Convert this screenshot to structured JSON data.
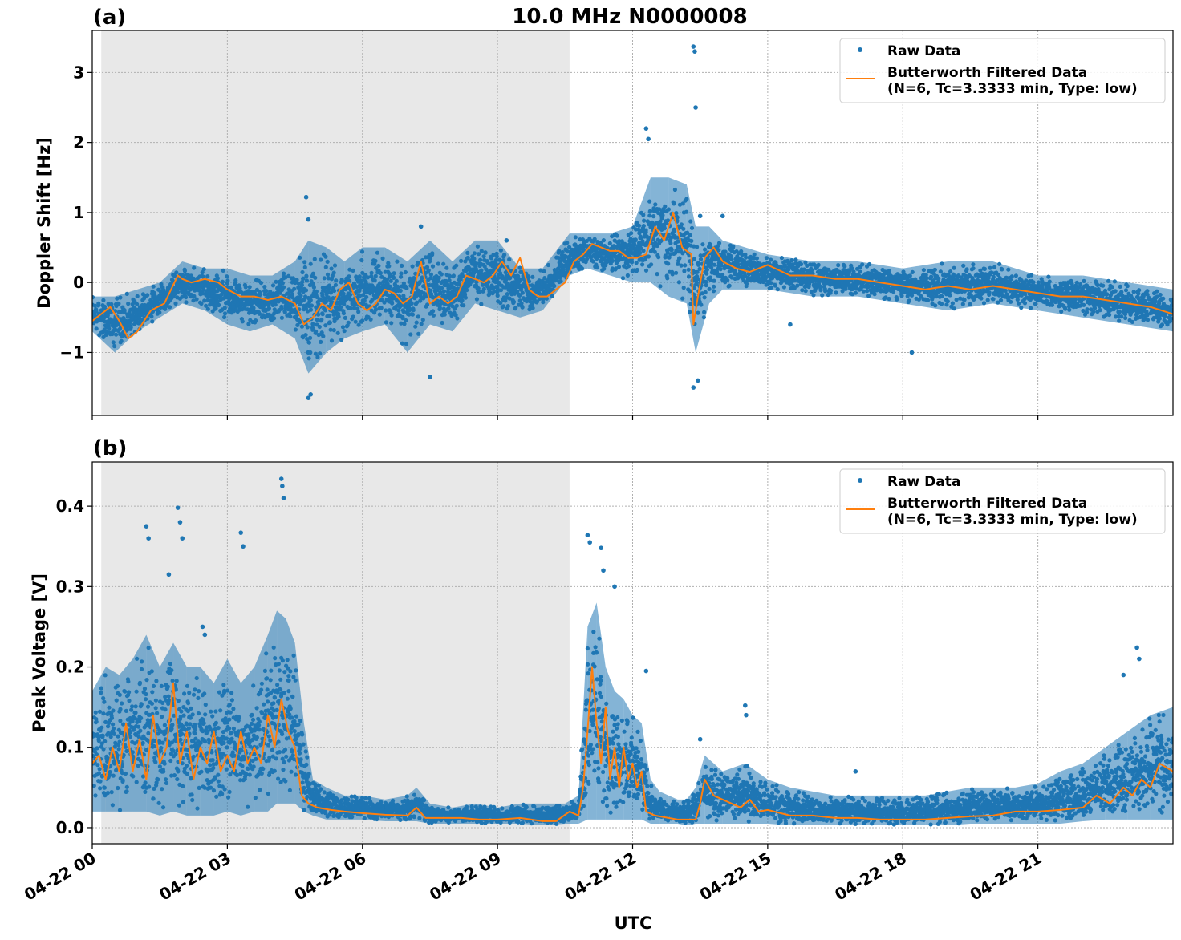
{
  "figure_title": "10.0 MHz N0000008",
  "xlabel": "UTC",
  "chart_data": [
    {
      "type": "line",
      "panel_label": "(a)",
      "ylabel": "Doppler Shift [Hz]",
      "x_unit": "hours since 04-22 00:00 UTC",
      "xlim": [
        0,
        24
      ],
      "ylim": [
        -1.9,
        3.6
      ],
      "yticks": [
        -1,
        0,
        1,
        2,
        3
      ],
      "ytick_labels": [
        "−1",
        "0",
        "1",
        "2",
        "3"
      ],
      "xticks": [
        0,
        3,
        6,
        9,
        12,
        15,
        18,
        21
      ],
      "shaded_region_hours": [
        0.2,
        10.6
      ],
      "grid": true,
      "legend_position": "top-right",
      "legend": [
        {
          "label": "Raw Data",
          "style": "dots",
          "color": "#1f77b4"
        },
        {
          "label": "Butterworth Filtered Data\n(N=6, Tc=3.3333 min, Type: low)",
          "style": "line",
          "color": "#ff7f0e"
        }
      ],
      "series": [
        {
          "name": "Raw Data",
          "kind": "scatter-band",
          "x": [
            0,
            0.5,
            1.0,
            1.5,
            2.0,
            2.5,
            3.0,
            3.5,
            4.0,
            4.5,
            4.8,
            5.2,
            5.6,
            6.0,
            6.5,
            7.0,
            7.5,
            8.0,
            8.5,
            9.0,
            9.5,
            10.0,
            10.6,
            11.0,
            11.5,
            12.0,
            12.4,
            12.8,
            13.2,
            13.4,
            13.7,
            14.0,
            14.5,
            15.0,
            16.0,
            17.0,
            18.0,
            19.0,
            20.0,
            21.0,
            22.0,
            23.0,
            24.0
          ],
          "upper": [
            -0.2,
            -0.2,
            -0.1,
            0.0,
            0.3,
            0.2,
            0.2,
            0.1,
            0.1,
            0.3,
            0.6,
            0.5,
            0.3,
            0.5,
            0.5,
            0.3,
            0.6,
            0.3,
            0.6,
            0.6,
            0.2,
            0.2,
            0.7,
            0.7,
            0.7,
            0.8,
            1.5,
            1.5,
            1.4,
            0.8,
            0.8,
            0.6,
            0.5,
            0.4,
            0.3,
            0.3,
            0.2,
            0.3,
            0.3,
            0.1,
            0.1,
            0.0,
            -0.1
          ],
          "lower": [
            -0.7,
            -1.0,
            -0.7,
            -0.5,
            -0.3,
            -0.4,
            -0.6,
            -0.7,
            -0.6,
            -0.8,
            -1.3,
            -1.0,
            -0.8,
            -0.7,
            -0.6,
            -1.0,
            -0.6,
            -0.7,
            -0.3,
            -0.4,
            -0.5,
            -0.4,
            0.1,
            0.2,
            0.1,
            0.0,
            0.0,
            -0.2,
            -0.3,
            -1.0,
            -0.3,
            -0.1,
            -0.1,
            -0.1,
            -0.2,
            -0.2,
            -0.3,
            -0.4,
            -0.3,
            -0.4,
            -0.5,
            -0.6,
            -0.7
          ]
        },
        {
          "name": "Raw Data outliers",
          "kind": "points",
          "x": [
            4.75,
            4.8,
            4.85,
            4.8,
            7.3,
            7.5,
            12.3,
            12.35,
            13.35,
            13.38,
            13.4,
            13.35,
            13.45,
            13.5,
            14.0,
            18.2,
            15.5,
            9.2
          ],
          "y": [
            1.22,
            0.9,
            -1.6,
            -1.65,
            0.8,
            -1.35,
            2.2,
            2.05,
            3.37,
            3.3,
            2.5,
            -1.5,
            -1.4,
            0.95,
            0.95,
            -1.0,
            -0.6,
            0.6
          ]
        },
        {
          "name": "Butterworth Filtered Data",
          "kind": "line",
          "x": [
            0,
            0.2,
            0.4,
            0.6,
            0.8,
            1.0,
            1.3,
            1.6,
            1.9,
            2.0,
            2.2,
            2.5,
            2.8,
            3.0,
            3.3,
            3.6,
            3.9,
            4.2,
            4.5,
            4.7,
            4.9,
            5.1,
            5.3,
            5.5,
            5.7,
            5.9,
            6.1,
            6.3,
            6.5,
            6.7,
            6.9,
            7.1,
            7.3,
            7.5,
            7.7,
            7.9,
            8.1,
            8.3,
            8.5,
            8.7,
            8.9,
            9.1,
            9.3,
            9.5,
            9.7,
            9.9,
            10.1,
            10.3,
            10.5,
            10.7,
            10.9,
            11.1,
            11.3,
            11.5,
            11.7,
            11.9,
            12.1,
            12.3,
            12.5,
            12.7,
            12.9,
            13.1,
            13.3,
            13.35,
            13.45,
            13.6,
            13.8,
            14.0,
            14.3,
            14.6,
            15.0,
            15.5,
            16.0,
            16.5,
            17.0,
            17.5,
            18.0,
            18.5,
            19.0,
            19.5,
            20.0,
            20.5,
            21.0,
            21.5,
            22.0,
            22.5,
            23.0,
            23.5,
            24.0
          ],
          "y": [
            -0.55,
            -0.45,
            -0.35,
            -0.55,
            -0.8,
            -0.7,
            -0.4,
            -0.3,
            0.1,
            0.05,
            0.0,
            0.05,
            0.0,
            -0.1,
            -0.2,
            -0.2,
            -0.25,
            -0.2,
            -0.3,
            -0.6,
            -0.5,
            -0.3,
            -0.4,
            -0.1,
            0.0,
            -0.3,
            -0.4,
            -0.3,
            -0.1,
            -0.15,
            -0.3,
            -0.2,
            0.3,
            -0.3,
            -0.2,
            -0.3,
            -0.2,
            0.1,
            0.05,
            0.0,
            0.1,
            0.3,
            0.1,
            0.35,
            -0.1,
            -0.2,
            -0.2,
            -0.1,
            0.0,
            0.3,
            0.4,
            0.55,
            0.5,
            0.45,
            0.45,
            0.35,
            0.35,
            0.4,
            0.8,
            0.6,
            1.0,
            0.5,
            0.4,
            -0.6,
            -0.2,
            0.35,
            0.5,
            0.3,
            0.2,
            0.15,
            0.25,
            0.1,
            0.1,
            0.05,
            0.05,
            0.0,
            -0.05,
            -0.1,
            -0.05,
            -0.1,
            -0.05,
            -0.1,
            -0.15,
            -0.2,
            -0.2,
            -0.25,
            -0.3,
            -0.35,
            -0.45
          ]
        }
      ]
    },
    {
      "type": "line",
      "panel_label": "(b)",
      "ylabel": "Peak Voltage [V]",
      "x_unit": "hours since 04-22 00:00 UTC",
      "xlim": [
        0,
        24
      ],
      "ylim": [
        -0.02,
        0.455
      ],
      "yticks": [
        0.0,
        0.1,
        0.2,
        0.3,
        0.4
      ],
      "ytick_labels": [
        "0.0",
        "0.1",
        "0.2",
        "0.3",
        "0.4"
      ],
      "xticks": [
        0,
        3,
        6,
        9,
        12,
        15,
        18,
        21
      ],
      "xtick_labels": [
        "04-22 00",
        "04-22 03",
        "04-22 06",
        "04-22 09",
        "04-22 12",
        "04-22 15",
        "04-22 18",
        "04-22 21"
      ],
      "shaded_region_hours": [
        0.2,
        10.6
      ],
      "grid": true,
      "legend_position": "top-right",
      "legend": [
        {
          "label": "Raw Data",
          "style": "dots",
          "color": "#1f77b4"
        },
        {
          "label": "Butterworth Filtered Data\n(N=6, Tc=3.3333 min, Type: low)",
          "style": "line",
          "color": "#ff7f0e"
        }
      ],
      "series": [
        {
          "name": "Raw Data",
          "kind": "scatter-band",
          "x": [
            0,
            0.3,
            0.6,
            0.9,
            1.2,
            1.5,
            1.8,
            2.1,
            2.4,
            2.7,
            3.0,
            3.3,
            3.6,
            3.9,
            4.1,
            4.3,
            4.5,
            4.7,
            4.9,
            5.2,
            5.6,
            6.0,
            6.5,
            7.0,
            7.2,
            7.5,
            8.0,
            8.5,
            9.0,
            9.5,
            10.0,
            10.5,
            10.8,
            11.0,
            11.2,
            11.4,
            11.6,
            11.8,
            12.0,
            12.2,
            12.4,
            12.6,
            12.8,
            13.0,
            13.2,
            13.4,
            13.6,
            13.8,
            14.0,
            14.5,
            15.0,
            15.5,
            16.0,
            16.5,
            17.0,
            17.5,
            18.0,
            18.5,
            19.0,
            19.5,
            20.0,
            20.5,
            21.0,
            21.5,
            22.0,
            22.5,
            23.0,
            23.5,
            24.0
          ],
          "upper": [
            0.17,
            0.2,
            0.19,
            0.21,
            0.24,
            0.2,
            0.23,
            0.2,
            0.2,
            0.18,
            0.21,
            0.18,
            0.2,
            0.24,
            0.27,
            0.26,
            0.23,
            0.13,
            0.06,
            0.05,
            0.04,
            0.04,
            0.035,
            0.04,
            0.05,
            0.03,
            0.025,
            0.03,
            0.025,
            0.03,
            0.03,
            0.03,
            0.04,
            0.25,
            0.28,
            0.2,
            0.17,
            0.16,
            0.14,
            0.13,
            0.06,
            0.045,
            0.04,
            0.035,
            0.035,
            0.05,
            0.09,
            0.08,
            0.07,
            0.08,
            0.06,
            0.05,
            0.045,
            0.04,
            0.04,
            0.04,
            0.04,
            0.04,
            0.045,
            0.05,
            0.05,
            0.05,
            0.055,
            0.07,
            0.08,
            0.1,
            0.12,
            0.14,
            0.15
          ],
          "lower": [
            0.02,
            0.02,
            0.02,
            0.02,
            0.02,
            0.015,
            0.02,
            0.015,
            0.015,
            0.015,
            0.02,
            0.015,
            0.02,
            0.02,
            0.03,
            0.03,
            0.03,
            0.02,
            0.015,
            0.01,
            0.01,
            0.01,
            0.008,
            0.008,
            0.008,
            0.005,
            0.005,
            0.005,
            0.005,
            0.005,
            0.003,
            0.005,
            0.005,
            0.01,
            0.01,
            0.01,
            0.01,
            0.01,
            0.01,
            0.01,
            0.005,
            0.005,
            0.005,
            0.005,
            0.003,
            0.005,
            0.005,
            0.005,
            0.005,
            0.005,
            0.005,
            0.003,
            0.003,
            0.003,
            0.003,
            0.003,
            0.003,
            0.003,
            0.003,
            0.005,
            0.005,
            0.005,
            0.005,
            0.005,
            0.008,
            0.01,
            0.01,
            0.01,
            0.01
          ]
        },
        {
          "name": "Raw Data outliers",
          "kind": "points",
          "x": [
            1.2,
            1.25,
            1.9,
            1.95,
            2.0,
            3.3,
            3.35,
            4.2,
            4.22,
            4.25,
            1.7,
            2.45,
            2.5,
            11.0,
            11.05,
            11.3,
            11.35,
            11.6,
            12.3,
            14.5,
            14.52,
            16.95,
            23.2,
            23.25,
            22.9,
            13.5
          ],
          "y": [
            0.375,
            0.36,
            0.398,
            0.38,
            0.36,
            0.367,
            0.35,
            0.434,
            0.425,
            0.41,
            0.315,
            0.25,
            0.24,
            0.364,
            0.355,
            0.348,
            0.32,
            0.3,
            0.195,
            0.152,
            0.14,
            0.07,
            0.224,
            0.21,
            0.19,
            0.11
          ]
        },
        {
          "name": "Butterworth Filtered Data",
          "kind": "line",
          "x": [
            0,
            0.15,
            0.3,
            0.45,
            0.6,
            0.75,
            0.9,
            1.05,
            1.2,
            1.35,
            1.5,
            1.65,
            1.8,
            1.95,
            2.1,
            2.25,
            2.4,
            2.55,
            2.7,
            2.85,
            3.0,
            3.15,
            3.3,
            3.45,
            3.6,
            3.75,
            3.9,
            4.05,
            4.2,
            4.35,
            4.5,
            4.65,
            4.8,
            5.0,
            5.3,
            5.6,
            6.0,
            6.5,
            7.0,
            7.2,
            7.4,
            7.8,
            8.2,
            8.6,
            9.0,
            9.5,
            10.0,
            10.3,
            10.6,
            10.8,
            10.9,
            11.0,
            11.1,
            11.2,
            11.3,
            11.4,
            11.5,
            11.6,
            11.7,
            11.8,
            11.9,
            12.0,
            12.1,
            12.2,
            12.3,
            12.5,
            12.8,
            13.0,
            13.2,
            13.4,
            13.5,
            13.6,
            13.8,
            14.0,
            14.2,
            14.4,
            14.6,
            14.8,
            15.0,
            15.5,
            16.0,
            16.5,
            17.0,
            17.5,
            18.0,
            18.5,
            19.0,
            19.5,
            20.0,
            20.5,
            21.0,
            21.5,
            22.0,
            22.3,
            22.6,
            22.9,
            23.1,
            23.3,
            23.5,
            23.7,
            24.0
          ],
          "y": [
            0.08,
            0.09,
            0.06,
            0.1,
            0.07,
            0.13,
            0.07,
            0.11,
            0.06,
            0.14,
            0.08,
            0.1,
            0.18,
            0.08,
            0.12,
            0.06,
            0.1,
            0.08,
            0.12,
            0.07,
            0.09,
            0.07,
            0.12,
            0.08,
            0.1,
            0.08,
            0.14,
            0.1,
            0.16,
            0.12,
            0.1,
            0.04,
            0.03,
            0.025,
            0.022,
            0.02,
            0.018,
            0.016,
            0.015,
            0.025,
            0.012,
            0.012,
            0.012,
            0.01,
            0.01,
            0.012,
            0.008,
            0.008,
            0.02,
            0.015,
            0.05,
            0.12,
            0.2,
            0.13,
            0.08,
            0.15,
            0.06,
            0.1,
            0.05,
            0.1,
            0.06,
            0.08,
            0.05,
            0.07,
            0.02,
            0.015,
            0.012,
            0.01,
            0.01,
            0.01,
            0.03,
            0.06,
            0.04,
            0.035,
            0.03,
            0.025,
            0.035,
            0.02,
            0.022,
            0.015,
            0.015,
            0.012,
            0.012,
            0.01,
            0.01,
            0.01,
            0.012,
            0.014,
            0.015,
            0.02,
            0.02,
            0.022,
            0.025,
            0.04,
            0.03,
            0.05,
            0.04,
            0.06,
            0.05,
            0.08,
            0.07
          ]
        }
      ]
    }
  ]
}
